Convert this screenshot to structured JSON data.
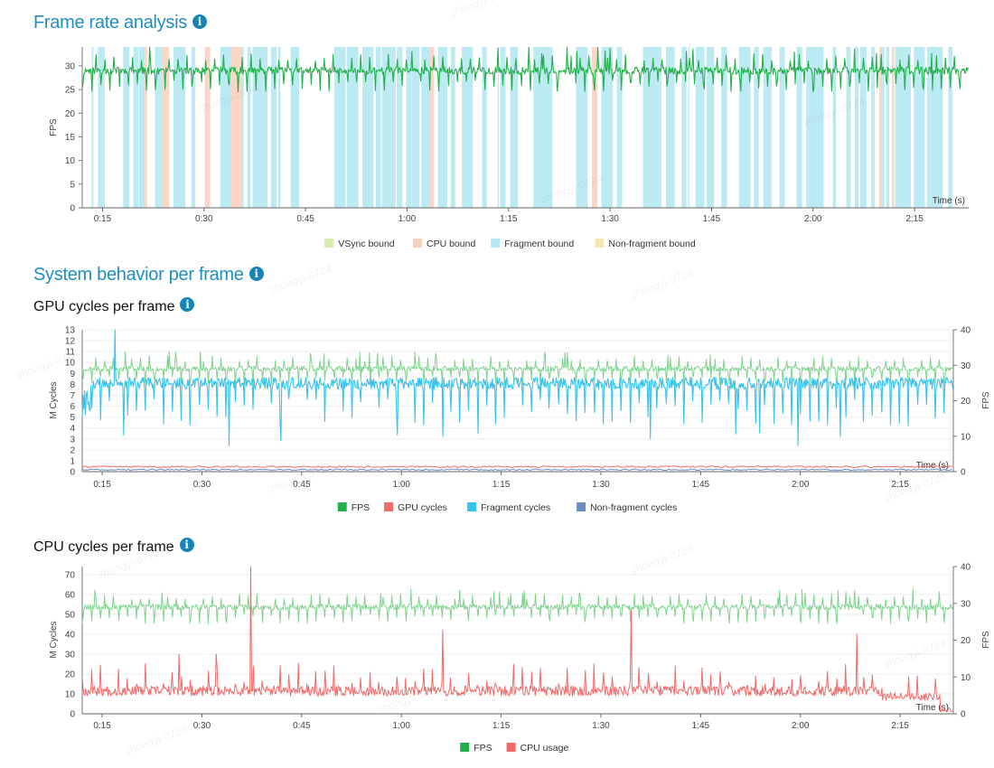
{
  "watermark": "zhongyi-0724",
  "sections": {
    "frame_rate": {
      "title": "Frame rate analysis",
      "info_icon": "info-icon"
    },
    "system_behavior": {
      "title": "System behavior per frame",
      "info_icon": "info-icon"
    },
    "gpu": {
      "title": "GPU cycles per frame",
      "info_icon": "info-icon"
    },
    "cpu": {
      "title": "CPU cycles per frame",
      "info_icon": "info-icon"
    }
  },
  "colors": {
    "fps_line": "#23b04a",
    "fps_light": "#7fd38f",
    "vsync": "#d8ecb0",
    "cpu_bound": "#f8d2c0",
    "fragment_bound": "#b5e8f2",
    "nonfragment_bound": "#f8e6b0",
    "gpu_cycles": "#f06a6a",
    "fragment_cycles": "#38c2ee",
    "nonfragment_cycles": "#6d8cc6",
    "cpu_usage": "#f06a6a",
    "title": "#1f8fc0"
  },
  "chart_data": [
    {
      "id": "frame_rate",
      "type": "area",
      "title": "Frame rate analysis",
      "xlabel": "Time (s)",
      "ylabel": "FPS",
      "xlim": [
        12,
        143
      ],
      "ylim": [
        0,
        34
      ],
      "x_ticks": [
        "0:15",
        "0:30",
        "0:45",
        "1:00",
        "1:15",
        "1:30",
        "1:45",
        "2:00",
        "2:15"
      ],
      "x_tick_values": [
        15,
        30,
        45,
        60,
        75,
        90,
        105,
        120,
        135
      ],
      "y_ticks": [
        0,
        5,
        10,
        15,
        20,
        25,
        30
      ],
      "legend": [
        "VSync bound",
        "CPU bound",
        "Fragment bound",
        "Non-fragment bound"
      ],
      "series": [
        {
          "name": "FPS",
          "pattern": "periodic",
          "base": 29,
          "amp_low": 4,
          "amp_high": 3,
          "dense_dip_period_s": 1.4
        }
      ],
      "bound_regions": [
        {
          "name": "Fragment bound",
          "dominant": true
        },
        {
          "name": "CPU bound",
          "sparse": true
        }
      ]
    },
    {
      "id": "gpu",
      "type": "line",
      "title": "GPU cycles per frame",
      "xlabel": "Time (s)",
      "ylabel": "M Cycles",
      "y2label": "FPS",
      "xlim": [
        12,
        143
      ],
      "ylim": [
        0,
        13
      ],
      "y2lim": [
        0,
        40
      ],
      "x_ticks": [
        "0:15",
        "0:30",
        "0:45",
        "1:00",
        "1:15",
        "1:30",
        "1:45",
        "2:00",
        "2:15"
      ],
      "x_tick_values": [
        15,
        30,
        45,
        60,
        75,
        90,
        105,
        120,
        135
      ],
      "y_ticks": [
        0,
        1,
        2,
        3,
        4,
        5,
        6,
        7,
        8,
        9,
        10,
        11,
        12,
        13
      ],
      "y2_ticks": [
        0,
        10,
        20,
        30,
        40
      ],
      "legend": [
        "FPS",
        "GPU cycles",
        "Fragment cycles",
        "Non-fragment cycles"
      ],
      "series": [
        {
          "name": "FPS",
          "axis": "right",
          "base": 29,
          "pattern": "periodic"
        },
        {
          "name": "GPU cycles",
          "axis": "left",
          "base": 0.45,
          "pattern": "flat"
        },
        {
          "name": "Fragment cycles",
          "axis": "left",
          "base": 8.1,
          "dips_to": 3,
          "peak": 13
        },
        {
          "name": "Non-fragment cycles",
          "axis": "left",
          "base": 0.2,
          "pattern": "flat"
        }
      ]
    },
    {
      "id": "cpu",
      "type": "line",
      "title": "CPU cycles per frame",
      "xlabel": "Time (s)",
      "ylabel": "M Cycles",
      "y2label": "FPS",
      "xlim": [
        12,
        143
      ],
      "ylim": [
        0,
        74
      ],
      "y2lim": [
        0,
        40
      ],
      "x_ticks": [
        "0:15",
        "0:30",
        "0:45",
        "1:00",
        "1:15",
        "1:30",
        "1:45",
        "2:00",
        "2:15"
      ],
      "x_tick_values": [
        15,
        30,
        45,
        60,
        75,
        90,
        105,
        120,
        135
      ],
      "y_ticks": [
        0,
        10,
        20,
        30,
        40,
        50,
        60,
        70
      ],
      "y2_ticks": [
        0,
        10,
        20,
        30,
        40
      ],
      "legend": [
        "FPS",
        "CPU usage"
      ],
      "series": [
        {
          "name": "FPS",
          "axis": "right",
          "base": 29,
          "pattern": "periodic"
        },
        {
          "name": "CPU usage",
          "axis": "left",
          "base": 10,
          "spikes": [
            {
              "t": 37.4,
              "value": 74
            },
            {
              "t": 94.5,
              "value": 52
            },
            {
              "t": 66.2,
              "value": 42
            },
            {
              "t": 128.5,
              "value": 40
            },
            {
              "t": 26.5,
              "value": 30
            },
            {
              "t": 32.1,
              "value": 30
            }
          ]
        }
      ]
    }
  ]
}
